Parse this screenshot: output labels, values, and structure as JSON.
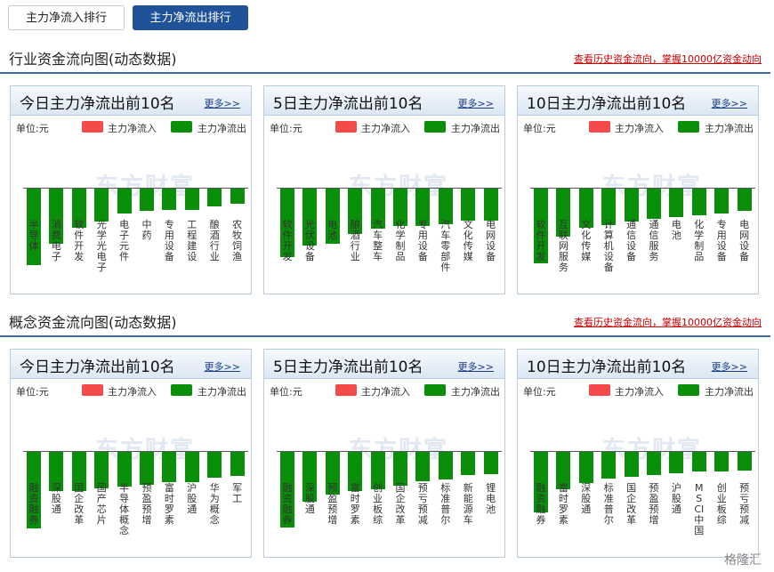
{
  "tabs": {
    "inflow": "主力净流入排行",
    "outflow": "主力净流出排行"
  },
  "sections": [
    {
      "title": "行业资金流向图(动态数据)",
      "link": "查看历史资金流向，掌握10000亿资金动向",
      "panels": [
        {
          "title": "今日主力净流出前10名",
          "more": "更多>>",
          "bars": [
            {
              "label": "半导体",
              "value": 86
            },
            {
              "label": "消费电子",
              "value": 62
            },
            {
              "label": "软件开发",
              "value": 44
            },
            {
              "label": "光学光电子",
              "value": 37
            },
            {
              "label": "电子元件",
              "value": 28
            },
            {
              "label": "中药",
              "value": 25
            },
            {
              "label": "专用设备",
              "value": 24
            },
            {
              "label": "工程建设",
              "value": 24
            },
            {
              "label": "酿酒行业",
              "value": 20
            },
            {
              "label": "农牧饲渔",
              "value": 17
            }
          ]
        },
        {
          "title": "5日主力净流出前10名",
          "more": "更多>>",
          "bars": [
            {
              "label": "软件开发",
              "value": 77
            },
            {
              "label": "光伏设备",
              "value": 64
            },
            {
              "label": "电池",
              "value": 62
            },
            {
              "label": "酿酒行业",
              "value": 51
            },
            {
              "label": "汽车整车",
              "value": 45
            },
            {
              "label": "化学制品",
              "value": 42
            },
            {
              "label": "专用设备",
              "value": 42
            },
            {
              "label": "汽车零部件",
              "value": 40
            },
            {
              "label": "文化传媒",
              "value": 36
            },
            {
              "label": "电网设备",
              "value": 36
            }
          ]
        },
        {
          "title": "10日主力净流出前10名",
          "more": "更多>>",
          "bars": [
            {
              "label": "软件开发",
              "value": 84
            },
            {
              "label": "互联网服务",
              "value": 54
            },
            {
              "label": "文化传媒",
              "value": 44
            },
            {
              "label": "计算机设备",
              "value": 41
            },
            {
              "label": "通信设备",
              "value": 37
            },
            {
              "label": "通信服务",
              "value": 34
            },
            {
              "label": "电池",
              "value": 32
            },
            {
              "label": "化学制品",
              "value": 30
            },
            {
              "label": "专用设备",
              "value": 28
            },
            {
              "label": "电网设备",
              "value": 25
            }
          ]
        }
      ]
    },
    {
      "title": "概念资金流向图(动态数据)",
      "link": "查看历史资金流向，掌握10000亿资金动向",
      "panels": [
        {
          "title": "今日主力净流出前10名",
          "more": "更多>>",
          "bars": [
            {
              "label": "融资融券",
              "value": 86
            },
            {
              "label": "深股通",
              "value": 44
            },
            {
              "label": "国企改革",
              "value": 44
            },
            {
              "label": "国产芯片",
              "value": 41
            },
            {
              "label": "半导体概念",
              "value": 39
            },
            {
              "label": "预盈预增",
              "value": 37
            },
            {
              "label": "富时罗素",
              "value": 34
            },
            {
              "label": "沪股通",
              "value": 34
            },
            {
              "label": "华为概念",
              "value": 29
            },
            {
              "label": "军工",
              "value": 27
            }
          ]
        },
        {
          "title": "5日主力净流出前10名",
          "more": "更多>>",
          "bars": [
            {
              "label": "融资融券",
              "value": 85
            },
            {
              "label": "深股通",
              "value": 56
            },
            {
              "label": "预盈预增",
              "value": 48
            },
            {
              "label": "富时罗素",
              "value": 44
            },
            {
              "label": "创业板综",
              "value": 42
            },
            {
              "label": "国企改革",
              "value": 38
            },
            {
              "label": "预亏预减",
              "value": 33
            },
            {
              "label": "标准普尔",
              "value": 31
            },
            {
              "label": "新能源车",
              "value": 26
            },
            {
              "label": "锂电池",
              "value": 25
            }
          ]
        },
        {
          "title": "10日主力净流出前10名",
          "more": "更多>>",
          "bars": [
            {
              "label": "融资融券",
              "value": 68
            },
            {
              "label": "富时罗素",
              "value": 42
            },
            {
              "label": "深股通",
              "value": 35
            },
            {
              "label": "标准普尔",
              "value": 30
            },
            {
              "label": "国企改革",
              "value": 28
            },
            {
              "label": "预盈预增",
              "value": 26
            },
            {
              "label": "沪股通",
              "value": 24
            },
            {
              "label": "MSCI中国",
              "value": 22
            },
            {
              "label": "创业板综",
              "value": 22
            },
            {
              "label": "预亏预减",
              "value": 21
            }
          ]
        }
      ]
    }
  ],
  "legend": {
    "unit": "单位:元",
    "inflow": "主力净流入",
    "outflow": "主力净流出"
  },
  "watermark": "东方财富",
  "corner_logo": "格隆汇",
  "colors": {
    "inflow": "#f44a4a",
    "outflow": "#0a8f0a",
    "accent": "#1f5298"
  }
}
